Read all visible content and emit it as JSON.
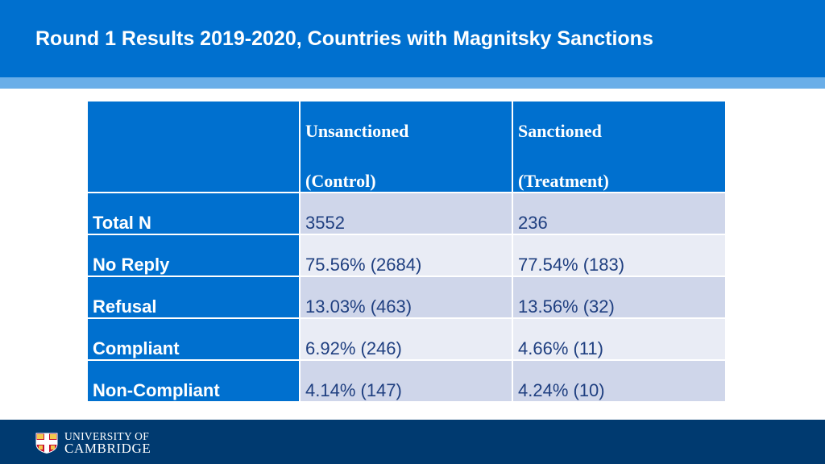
{
  "slide": {
    "title": "Round 1 Results 2019-2020, Countries with Magnitsky Sanctions"
  },
  "table": {
    "headers": [
      {
        "line1": "",
        "line2": ""
      },
      {
        "line1": "Unsanctioned",
        "line2": "(Control)"
      },
      {
        "line1": "Sanctioned",
        "line2": "(Treatment)"
      }
    ],
    "rows": [
      {
        "label": "Total N",
        "unsanctioned": "3552",
        "sanctioned": "236"
      },
      {
        "label": "No Reply",
        "unsanctioned": "75.56% (2684)",
        "sanctioned": "77.54% (183)"
      },
      {
        "label": "Refusal",
        "unsanctioned": "13.03% (463)",
        "sanctioned": "13.56% (32)"
      },
      {
        "label": "Compliant",
        "unsanctioned": "6.92% (246)",
        "sanctioned": "4.66% (11)"
      },
      {
        "label": "Non-Compliant",
        "unsanctioned": "4.14% (147)",
        "sanctioned": "4.24% (10)"
      }
    ]
  },
  "footer": {
    "university_line1": "UNIVERSITY OF",
    "university_line2": "CAMBRIDGE"
  },
  "colors": {
    "brand_blue": "#0070cf",
    "light_strip": "#6aaee8",
    "footer_navy": "#003a70",
    "row_dark": "#cfd6ea",
    "row_light": "#e9ecf5"
  }
}
